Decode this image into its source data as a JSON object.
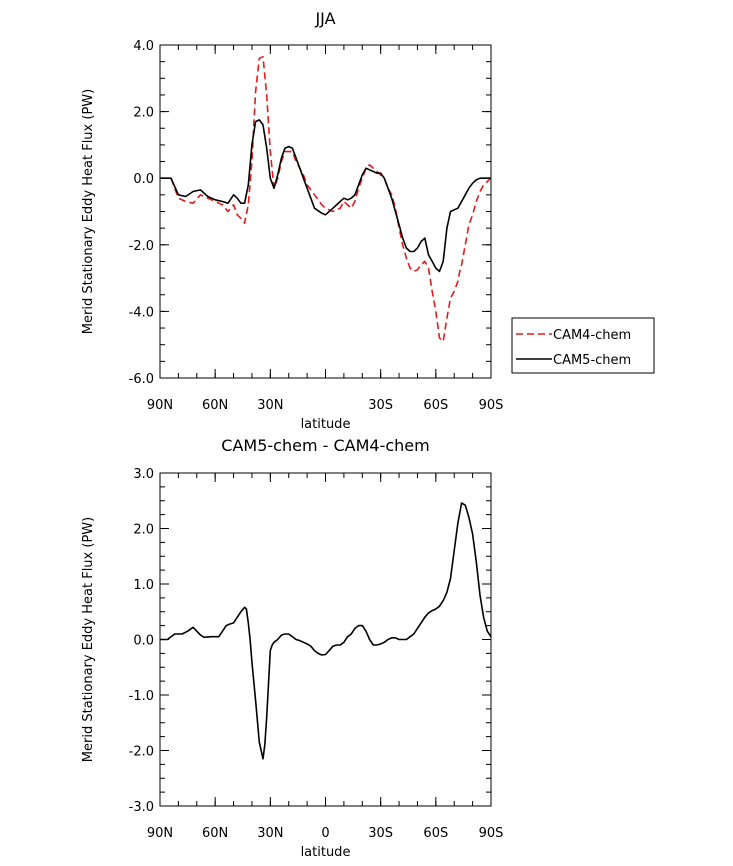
{
  "chart_data": [
    {
      "type": "line",
      "title": "JJA",
      "xlabel": "latitude",
      "ylabel": "Merid Stationary Eddy Heat Flux (PW)",
      "xlim": [
        90,
        -90
      ],
      "ylim": [
        -6.0,
        4.0
      ],
      "x_ticks": [
        90,
        60,
        30,
        0,
        -30,
        -60,
        -90
      ],
      "x_tick_labels": [
        "90N",
        "60N",
        "30N",
        "",
        "30S",
        "60S",
        "90S"
      ],
      "y_ticks": [
        -6,
        -4,
        -2,
        0,
        2,
        4
      ],
      "y_tick_labels": [
        "-6.0",
        "-4.0",
        "-2.0",
        "0.0",
        "2.0",
        "4.0"
      ],
      "legend_position": "right",
      "series": [
        {
          "name": "CAM4-chem",
          "color": "#e41a1c",
          "dash": "dashed",
          "x": [
            90,
            84,
            80,
            76,
            72,
            68,
            64,
            60,
            56,
            53,
            50,
            48,
            46,
            44,
            42,
            40,
            38,
            36,
            34,
            32,
            30,
            28,
            26,
            24,
            22,
            20,
            18,
            16,
            14,
            12,
            10,
            6,
            2,
            0,
            -4,
            -8,
            -10,
            -12,
            -14,
            -16,
            -18,
            -20,
            -22,
            -24,
            -26,
            -28,
            -30,
            -32,
            -34,
            -36,
            -38,
            -40,
            -42,
            -44,
            -46,
            -48,
            -50,
            -52,
            -54,
            -56,
            -58,
            -60,
            -62,
            -64,
            -66,
            -68,
            -70,
            -72,
            -73,
            -74,
            -75,
            -76,
            -77,
            -78,
            -80,
            -82,
            -84,
            -86,
            -88,
            -90
          ],
          "y": [
            0.0,
            0.0,
            -0.6,
            -0.7,
            -0.75,
            -0.5,
            -0.6,
            -0.7,
            -0.8,
            -1.0,
            -0.8,
            -1.1,
            -1.2,
            -1.35,
            -0.8,
            0.5,
            2.6,
            3.6,
            3.65,
            2.5,
            0.8,
            -0.3,
            0.0,
            0.5,
            0.8,
            0.8,
            0.8,
            0.5,
            0.3,
            0.1,
            -0.2,
            -0.5,
            -0.8,
            -0.9,
            -1.0,
            -0.9,
            -0.7,
            -0.8,
            -0.9,
            -0.7,
            -0.3,
            0.0,
            0.3,
            0.4,
            0.3,
            0.2,
            0.1,
            0.0,
            -0.3,
            -0.5,
            -0.9,
            -1.5,
            -2.0,
            -2.4,
            -2.7,
            -2.8,
            -2.75,
            -2.6,
            -2.5,
            -2.7,
            -3.4,
            -4.0,
            -4.8,
            -4.9,
            -4.2,
            -3.6,
            -3.4,
            -3.1,
            -2.8,
            -2.6,
            -2.3,
            -2.0,
            -1.7,
            -1.4,
            -1.1,
            -0.7,
            -0.4,
            -0.2,
            -0.1,
            0.0
          ]
        },
        {
          "name": "CAM5-chem",
          "color": "#000000",
          "dash": "solid",
          "x": [
            90,
            84,
            80,
            76,
            72,
            68,
            64,
            60,
            56,
            53,
            50,
            48,
            46,
            44,
            42,
            40,
            38,
            36,
            34,
            32,
            30,
            28,
            26,
            24,
            22,
            20,
            18,
            16,
            14,
            12,
            10,
            6,
            2,
            0,
            -4,
            -8,
            -10,
            -12,
            -14,
            -16,
            -18,
            -20,
            -22,
            -24,
            -26,
            -28,
            -30,
            -32,
            -34,
            -36,
            -38,
            -40,
            -42,
            -44,
            -46,
            -48,
            -50,
            -52,
            -54,
            -56,
            -58,
            -60,
            -62,
            -64,
            -66,
            -68,
            -70,
            -72,
            -73,
            -74,
            -75,
            -76,
            -77,
            -78,
            -80,
            -82,
            -84,
            -86,
            -88,
            -90
          ],
          "y": [
            0.0,
            0.0,
            -0.5,
            -0.55,
            -0.4,
            -0.35,
            -0.55,
            -0.65,
            -0.7,
            -0.75,
            -0.5,
            -0.6,
            -0.75,
            -0.75,
            -0.2,
            1.0,
            1.7,
            1.75,
            1.6,
            0.9,
            0.0,
            -0.3,
            0.1,
            0.6,
            0.9,
            0.95,
            0.9,
            0.6,
            0.3,
            0.0,
            -0.3,
            -0.9,
            -1.05,
            -1.1,
            -0.9,
            -0.7,
            -0.6,
            -0.65,
            -0.6,
            -0.5,
            -0.2,
            0.1,
            0.3,
            0.25,
            0.2,
            0.15,
            0.15,
            0.0,
            -0.3,
            -0.6,
            -1.0,
            -1.4,
            -1.8,
            -2.1,
            -2.2,
            -2.2,
            -2.1,
            -1.9,
            -1.8,
            -2.3,
            -2.5,
            -2.7,
            -2.8,
            -2.5,
            -1.5,
            -1.0,
            -0.95,
            -0.9,
            -0.8,
            -0.7,
            -0.6,
            -0.5,
            -0.4,
            -0.3,
            -0.15,
            -0.05,
            0.0,
            0.0,
            0.0,
            0.0
          ]
        }
      ]
    },
    {
      "type": "line",
      "title": "CAM5-chem - CAM4-chem",
      "xlabel": "latitude",
      "ylabel": "Merid Stationary Eddy Heat Flux (PW)",
      "xlim": [
        90,
        -90
      ],
      "ylim": [
        -3.0,
        3.0
      ],
      "x_ticks": [
        90,
        60,
        30,
        0,
        -30,
        -60,
        -90
      ],
      "x_tick_labels": [
        "90N",
        "60N",
        "30N",
        "0",
        "30S",
        "60S",
        "90S"
      ],
      "y_ticks": [
        -3,
        -2,
        -1,
        0,
        1,
        2,
        3
      ],
      "y_tick_labels": [
        "-3.0",
        "-2.0",
        "-1.0",
        "0.0",
        "1.0",
        "2.0",
        "3.0"
      ],
      "series": [
        {
          "name": "",
          "color": "#000000",
          "dash": "solid",
          "x": [
            90,
            86,
            82,
            78,
            75,
            72,
            68,
            66,
            62,
            58,
            56,
            54,
            52,
            50,
            48,
            46,
            44,
            43,
            42,
            41,
            40,
            38,
            36,
            34,
            33,
            32,
            31,
            30,
            29,
            28,
            26,
            24,
            22,
            20,
            18,
            16,
            14,
            12,
            10,
            8,
            6,
            4,
            2,
            0,
            -2,
            -4,
            -6,
            -8,
            -10,
            -12,
            -14,
            -16,
            -18,
            -20,
            -22,
            -24,
            -26,
            -28,
            -30,
            -32,
            -34,
            -36,
            -38,
            -40,
            -42,
            -44,
            -46,
            -48,
            -50,
            -52,
            -54,
            -56,
            -58,
            -60,
            -62,
            -64,
            -66,
            -68,
            -70,
            -72,
            -74,
            -76,
            -78,
            -80,
            -82,
            -84,
            -86,
            -88,
            -90
          ],
          "y": [
            0.0,
            0.0,
            0.1,
            0.1,
            0.15,
            0.22,
            0.08,
            0.04,
            0.05,
            0.05,
            0.15,
            0.25,
            0.28,
            0.3,
            0.4,
            0.5,
            0.58,
            0.55,
            0.3,
            0.0,
            -0.4,
            -1.1,
            -1.85,
            -2.15,
            -1.9,
            -1.4,
            -0.8,
            -0.2,
            -0.1,
            -0.05,
            0.0,
            0.08,
            0.1,
            0.1,
            0.05,
            0.0,
            -0.02,
            -0.05,
            -0.08,
            -0.12,
            -0.2,
            -0.25,
            -0.28,
            -0.27,
            -0.2,
            -0.12,
            -0.1,
            -0.1,
            -0.05,
            0.05,
            0.1,
            0.2,
            0.25,
            0.25,
            0.15,
            0.0,
            -0.1,
            -0.1,
            -0.08,
            -0.05,
            0.0,
            0.03,
            0.03,
            0.0,
            0.0,
            0.0,
            0.05,
            0.1,
            0.2,
            0.3,
            0.4,
            0.48,
            0.52,
            0.55,
            0.6,
            0.7,
            0.85,
            1.1,
            1.6,
            2.1,
            2.46,
            2.42,
            2.2,
            1.9,
            1.4,
            0.8,
            0.4,
            0.15,
            0.05
          ]
        }
      ]
    }
  ]
}
